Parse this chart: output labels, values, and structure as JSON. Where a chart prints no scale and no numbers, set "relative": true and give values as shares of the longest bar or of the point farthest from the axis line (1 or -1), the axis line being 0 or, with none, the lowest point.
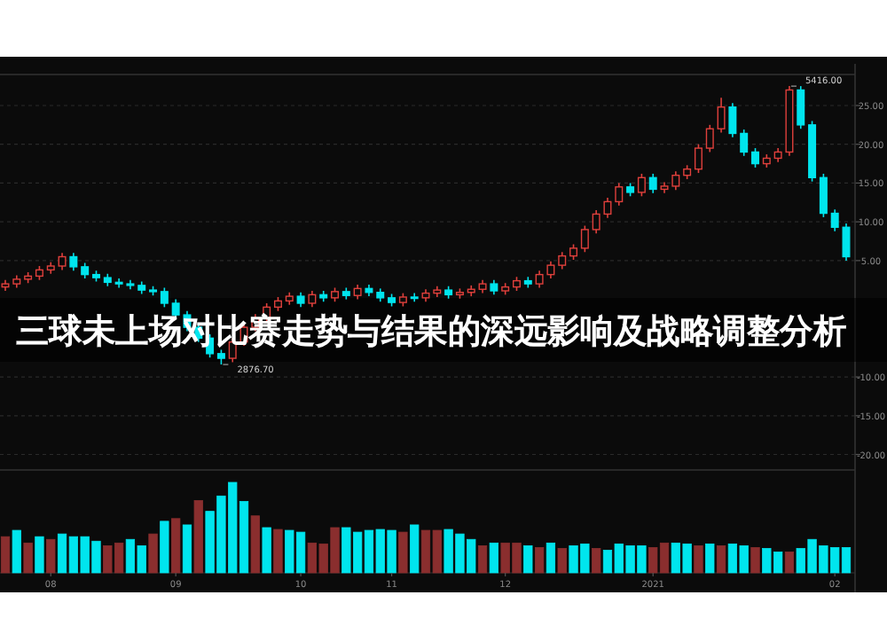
{
  "chart_data": [
    {
      "type": "candlestick",
      "title": "三球未上场对比赛走势与结果的深远影响及战略调整分析",
      "categories": [
        null,
        null,
        null,
        null,
        null,
        null,
        null,
        null,
        null,
        null,
        null,
        null,
        null,
        null,
        null,
        null,
        null,
        null,
        null,
        null,
        null,
        null,
        null,
        null,
        null,
        null,
        null,
        null,
        null,
        null,
        null,
        null,
        null,
        null,
        null,
        null,
        null,
        null,
        null,
        null,
        null,
        null,
        null,
        null,
        null,
        null,
        null,
        null,
        null,
        null,
        null,
        null,
        null,
        null,
        null,
        null,
        null,
        null,
        null,
        null,
        null,
        null,
        null,
        null,
        null,
        null,
        null,
        null,
        null,
        null,
        null,
        null,
        null,
        null,
        null
      ],
      "ohlc": [
        [
          1.6,
          2.5,
          1.1,
          2.0
        ],
        [
          2.0,
          3.1,
          1.5,
          2.6
        ],
        [
          2.6,
          3.5,
          2.1,
          3.0
        ],
        [
          3.0,
          4.3,
          2.5,
          3.8
        ],
        [
          3.8,
          4.8,
          3.3,
          4.3
        ],
        [
          4.3,
          6.0,
          3.8,
          5.5
        ],
        [
          5.5,
          6.0,
          3.7,
          4.2
        ],
        [
          4.2,
          4.7,
          2.7,
          3.2
        ],
        [
          3.2,
          3.7,
          2.3,
          2.8
        ],
        [
          2.8,
          3.3,
          1.7,
          2.2
        ],
        [
          2.2,
          2.7,
          1.5,
          2.0
        ],
        [
          2.0,
          2.5,
          1.3,
          1.8
        ],
        [
          1.8,
          2.3,
          0.7,
          1.2
        ],
        [
          1.2,
          1.7,
          0.5,
          1.0
        ],
        [
          1.0,
          1.5,
          -1.0,
          -0.5
        ],
        [
          -0.5,
          0.0,
          -2.5,
          -2.0
        ],
        [
          -2.0,
          -1.5,
          -4.1,
          -3.6
        ],
        [
          -3.6,
          -3.1,
          -5.5,
          -5.0
        ],
        [
          -5.0,
          -4.5,
          -7.5,
          -7.0
        ],
        [
          -7.0,
          -6.5,
          -8.4,
          -7.6
        ],
        [
          -7.6,
          -5.0,
          -8.1,
          -5.5
        ],
        [
          -5.5,
          -3.1,
          -6.0,
          -3.6
        ],
        [
          -3.6,
          -1.9,
          -4.1,
          -2.4
        ],
        [
          -2.4,
          -0.5,
          -2.9,
          -1.0
        ],
        [
          -1.0,
          0.3,
          -1.5,
          -0.2
        ],
        [
          -0.2,
          0.9,
          -0.7,
          0.4
        ],
        [
          0.4,
          0.9,
          -1.0,
          -0.5
        ],
        [
          -0.5,
          1.1,
          -1.0,
          0.6
        ],
        [
          0.6,
          1.1,
          -0.3,
          0.2
        ],
        [
          0.2,
          1.5,
          -0.3,
          1.0
        ],
        [
          1.0,
          1.5,
          0.0,
          0.5
        ],
        [
          0.5,
          1.9,
          0.0,
          1.4
        ],
        [
          1.4,
          1.9,
          0.4,
          0.9
        ],
        [
          0.9,
          1.4,
          -0.3,
          0.2
        ],
        [
          0.2,
          0.7,
          -0.9,
          -0.4
        ],
        [
          -0.4,
          0.8,
          -0.9,
          0.3
        ],
        [
          0.3,
          0.8,
          -0.3,
          0.2
        ],
        [
          0.2,
          1.3,
          -0.3,
          0.8
        ],
        [
          0.8,
          1.7,
          0.3,
          1.2
        ],
        [
          1.2,
          1.7,
          0.1,
          0.6
        ],
        [
          0.6,
          1.4,
          0.1,
          0.9
        ],
        [
          0.9,
          1.8,
          0.4,
          1.3
        ],
        [
          1.3,
          2.5,
          0.8,
          2.0
        ],
        [
          2.0,
          2.5,
          0.6,
          1.1
        ],
        [
          1.1,
          2.1,
          0.6,
          1.6
        ],
        [
          1.6,
          2.9,
          1.1,
          2.4
        ],
        [
          2.4,
          2.9,
          1.5,
          2.0
        ],
        [
          2.0,
          3.7,
          1.5,
          3.2
        ],
        [
          3.2,
          4.9,
          2.7,
          4.4
        ],
        [
          4.4,
          6.1,
          3.9,
          5.6
        ],
        [
          5.6,
          7.1,
          5.1,
          6.6
        ],
        [
          6.6,
          9.5,
          6.1,
          9.0
        ],
        [
          9.0,
          11.5,
          8.5,
          11.0
        ],
        [
          11.0,
          13.1,
          10.5,
          12.6
        ],
        [
          12.6,
          15.0,
          12.1,
          14.5
        ],
        [
          14.5,
          15.0,
          13.3,
          13.8
        ],
        [
          13.8,
          16.2,
          13.3,
          15.7
        ],
        [
          15.7,
          16.2,
          13.7,
          14.2
        ],
        [
          14.2,
          15.1,
          13.7,
          14.6
        ],
        [
          14.6,
          16.5,
          14.1,
          16.0
        ],
        [
          16.0,
          17.3,
          15.5,
          16.8
        ],
        [
          16.8,
          20.0,
          16.3,
          19.5
        ],
        [
          19.5,
          22.5,
          19.0,
          22.0
        ],
        [
          22.0,
          26.0,
          21.5,
          24.8
        ],
        [
          24.8,
          25.3,
          20.9,
          21.4
        ],
        [
          21.4,
          21.9,
          18.5,
          19.0
        ],
        [
          19.0,
          19.5,
          17.0,
          17.5
        ],
        [
          17.5,
          18.7,
          17.0,
          18.2
        ],
        [
          18.2,
          19.5,
          17.7,
          19.0
        ],
        [
          19.0,
          27.5,
          18.5,
          27.0
        ],
        [
          27.0,
          27.5,
          22.0,
          22.5
        ],
        [
          22.5,
          23.0,
          15.2,
          15.7
        ],
        [
          15.7,
          16.2,
          10.6,
          11.1
        ],
        [
          11.1,
          11.6,
          8.8,
          9.3
        ],
        [
          9.3,
          9.8,
          5.0,
          5.5
        ]
      ],
      "ylim": [
        -22,
        29
      ],
      "yticks": [
        {
          "value": 25,
          "label": "25.00"
        },
        {
          "value": 20,
          "label": "20.00"
        },
        {
          "value": 15,
          "label": "15.00"
        },
        {
          "value": 10,
          "label": "10.00"
        },
        {
          "value": 5,
          "label": "5.00"
        },
        {
          "value": -10,
          "label": "-10.00"
        },
        {
          "value": -15,
          "label": "-15.00"
        },
        {
          "value": -20,
          "label": "-20.00"
        }
      ],
      "grid": "y",
      "tick_labels": "y",
      "annotations": [
        "5416.00",
        "2876.70"
      ]
    },
    {
      "type": "bar",
      "relative": true,
      "categories": [
        null,
        null,
        null,
        null,
        "08",
        null,
        null,
        null,
        null,
        null,
        null,
        null,
        null,
        null,
        null,
        "09",
        null,
        null,
        null,
        null,
        null,
        null,
        null,
        null,
        null,
        null,
        "10",
        null,
        null,
        null,
        null,
        null,
        null,
        null,
        "11",
        null,
        null,
        null,
        null,
        null,
        null,
        null,
        null,
        null,
        "12",
        null,
        null,
        null,
        null,
        null,
        null,
        null,
        null,
        null,
        null,
        null,
        null,
        "2021",
        null,
        null,
        null,
        null,
        null,
        null,
        null,
        null,
        null,
        null,
        null,
        null,
        null,
        null,
        null,
        "02",
        null
      ],
      "values": [
        0.4,
        0.47,
        0.33,
        0.4,
        0.37,
        0.43,
        0.4,
        0.4,
        0.35,
        0.3,
        0.33,
        0.37,
        0.3,
        0.43,
        0.57,
        0.6,
        0.53,
        0.8,
        0.68,
        0.85,
        1.0,
        0.79,
        0.63,
        0.5,
        0.48,
        0.47,
        0.45,
        0.33,
        0.32,
        0.5,
        0.5,
        0.45,
        0.47,
        0.48,
        0.47,
        0.45,
        0.53,
        0.47,
        0.47,
        0.48,
        0.43,
        0.37,
        0.3,
        0.33,
        0.33,
        0.33,
        0.3,
        0.28,
        0.33,
        0.27,
        0.3,
        0.32,
        0.27,
        0.25,
        0.32,
        0.3,
        0.3,
        0.28,
        0.33,
        0.33,
        0.32,
        0.3,
        0.32,
        0.3,
        0.32,
        0.3,
        0.28,
        0.27,
        0.23,
        0.23,
        0.27,
        0.37,
        0.3,
        0.28,
        0.28
      ],
      "colors": [
        "#8a2e2e",
        "#00e5ee",
        "#8a2e2e",
        "#00e5ee",
        "#8a2e2e",
        "#00e5ee",
        "#00e5ee",
        "#00e5ee",
        "#00e5ee",
        "#8a2e2e",
        "#8a2e2e",
        "#00e5ee",
        "#00e5ee",
        "#8a2e2e",
        "#00e5ee",
        "#8a2e2e",
        "#00e5ee",
        "#8a2e2e",
        "#00e5ee",
        "#00e5ee",
        "#00e5ee",
        "#00e5ee",
        "#8a2e2e",
        "#00e5ee",
        "#8a2e2e",
        "#00e5ee",
        "#00e5ee",
        "#8a2e2e",
        "#8a2e2e",
        "#8a2e2e",
        "#00e5ee",
        "#00e5ee",
        "#00e5ee",
        "#00e5ee",
        "#00e5ee",
        "#8a2e2e",
        "#00e5ee",
        "#8a2e2e",
        "#8a2e2e",
        "#00e5ee",
        "#00e5ee",
        "#00e5ee",
        "#8a2e2e",
        "#00e5ee",
        "#8a2e2e",
        "#8a2e2e",
        "#00e5ee",
        "#8a2e2e",
        "#00e5ee",
        "#8a2e2e",
        "#00e5ee",
        "#00e5ee",
        "#8a2e2e",
        "#00e5ee",
        "#00e5ee",
        "#00e5ee",
        "#00e5ee",
        "#8a2e2e",
        "#8a2e2e",
        "#00e5ee",
        "#00e5ee",
        "#8a2e2e",
        "#00e5ee",
        "#8a2e2e",
        "#00e5ee",
        "#00e5ee",
        "#8a2e2e",
        "#00e5ee",
        "#00e5ee",
        "#8a2e2e",
        "#00e5ee",
        "#00e5ee",
        "#00e5ee",
        "#00e5ee",
        "#00e5ee"
      ]
    }
  ]
}
